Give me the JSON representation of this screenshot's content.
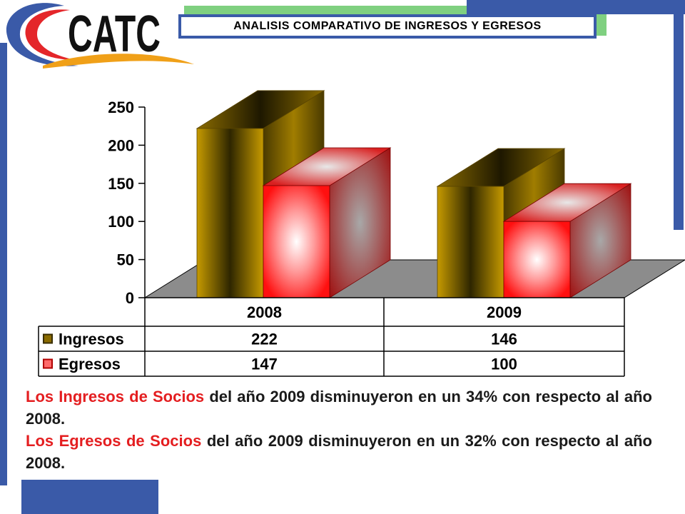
{
  "header": {
    "title": "ANALISIS COMPARATIVO DE INGRESOS Y EGRESOS"
  },
  "logo": {
    "text": "CATC"
  },
  "colors": {
    "accent_blue": "#3a5aa8",
    "accent_green": "#7fd080",
    "ingresos": "#c79a00",
    "egresos": "#ff2020",
    "highlight_text": "#e41e20"
  },
  "chart_data": {
    "type": "bar",
    "categories": [
      "2008",
      "2009"
    ],
    "series": [
      {
        "name": "Ingresos",
        "values": [
          222,
          146
        ]
      },
      {
        "name": "Egresos",
        "values": [
          147,
          100
        ]
      }
    ],
    "ylim": [
      0,
      250
    ],
    "yticks": [
      "0",
      "50",
      "100",
      "150",
      "200",
      "250"
    ],
    "table": {
      "header": [
        "2008",
        "2009"
      ],
      "rows": [
        {
          "label": "Ingresos",
          "values": [
            "222",
            "146"
          ]
        },
        {
          "label": "Egresos",
          "values": [
            "147",
            "100"
          ]
        }
      ]
    }
  },
  "summary": [
    {
      "highlight": "Los Ingresos de Socios",
      "rest": " del año 2009 disminuyeron en un 34% con respecto al año 2008."
    },
    {
      "highlight": "Los Egresos de Socios",
      "rest": " del año 2009 disminuyeron en un 32% con respecto al año 2008."
    }
  ]
}
